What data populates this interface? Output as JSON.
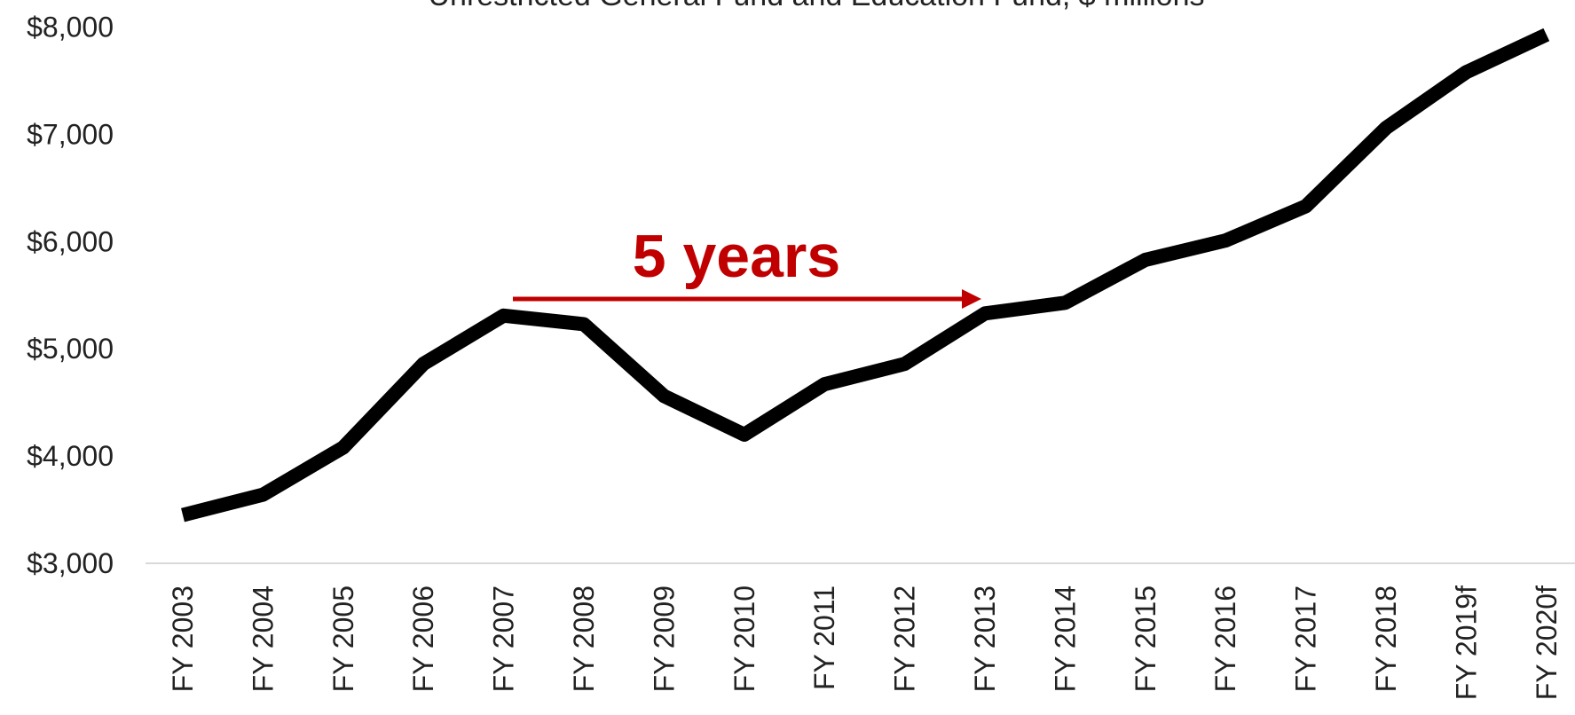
{
  "chart_data": {
    "type": "line",
    "title": "Unrestricted General Fund and Education Fund, $ millions",
    "categories": [
      "FY 2003",
      "FY 2004",
      "FY 2005",
      "FY 2006",
      "FY 2007",
      "FY 2008",
      "FY 2009",
      "FY 2010",
      "FY 2011",
      "FY 2012",
      "FY 2013",
      "FY 2014",
      "FY 2015",
      "FY 2016",
      "FY 2017",
      "FY 2018",
      "FY 2019f",
      "FY 2020f"
    ],
    "series": [
      {
        "name": "Unrestricted General Fund and Education Fund",
        "color": "#000000",
        "values": [
          3450,
          3640,
          4080,
          4860,
          5310,
          5230,
          4560,
          4200,
          4670,
          4860,
          5330,
          5430,
          5830,
          6010,
          6330,
          7060,
          7580,
          7930
        ]
      }
    ],
    "ylim": [
      3000,
      8000
    ],
    "yticks": [
      {
        "value": 3000,
        "label": "$3,000"
      },
      {
        "value": 4000,
        "label": "$4,000"
      },
      {
        "value": 5000,
        "label": "$5,000"
      },
      {
        "value": 6000,
        "label": "$6,000"
      },
      {
        "value": 7000,
        "label": "$7,000"
      },
      {
        "value": 8000,
        "label": "$8,000"
      }
    ],
    "grid": false,
    "annotation": "5 years",
    "annotation_color": "#c00000"
  }
}
